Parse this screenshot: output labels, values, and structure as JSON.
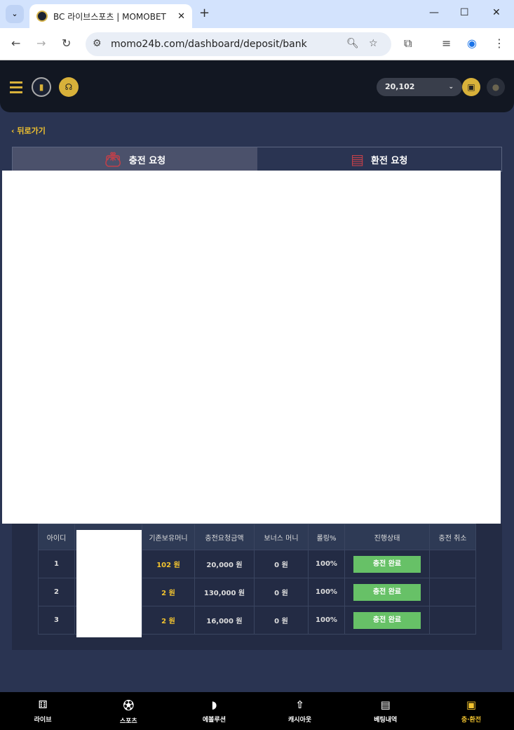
{
  "browser": {
    "tab_title": "BC 라이브스포츠 | MOMOBET",
    "url": "momo24b.com/dashboard/deposit/bank"
  },
  "header": {
    "balance": "20,102"
  },
  "back_label": "뒤로가기",
  "tabs": [
    {
      "label": "충전 요청",
      "active": true
    },
    {
      "label": "환전 요청",
      "active": false
    }
  ],
  "table": {
    "headers": [
      "아이디",
      "",
      "기존보유머니",
      "충전요청금액",
      "보너스 머니",
      "롤링%",
      "진행상태",
      "충전 취소"
    ],
    "rows": [
      {
        "id": "1",
        "prev": "102 원",
        "amount": "20,000 원",
        "bonus": "0 원",
        "rolling": "100%",
        "status": "충전 완료"
      },
      {
        "id": "2",
        "prev": "2 원",
        "amount": "130,000 원",
        "bonus": "0 원",
        "rolling": "100%",
        "status": "충전 완료"
      },
      {
        "id": "3",
        "prev": "2 원",
        "amount": "16,000 원",
        "bonus": "0 원",
        "rolling": "100%",
        "status": "충전 완료"
      }
    ]
  },
  "bottom_nav": [
    {
      "label": "라이브",
      "icon": "live-field-icon"
    },
    {
      "label": "스포츠",
      "icon": "soccer-ball-icon"
    },
    {
      "label": "에볼루션",
      "icon": "evolution-icon"
    },
    {
      "label": "캐시아웃",
      "icon": "cashout-icon"
    },
    {
      "label": "베팅내역",
      "icon": "document-icon"
    },
    {
      "label": "충·환전",
      "icon": "wallet-icon",
      "active": true
    }
  ],
  "colors": {
    "accent": "#f3c42f",
    "success": "#67c167",
    "header_bg": "#121722",
    "page_bg": "#2a3452"
  }
}
